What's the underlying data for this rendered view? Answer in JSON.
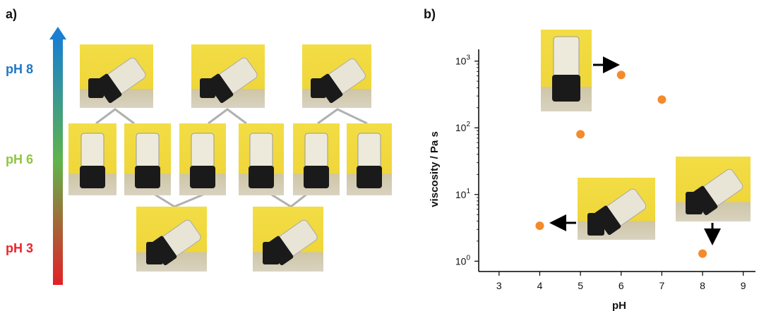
{
  "panel_a": {
    "label": "a)",
    "ph_levels": [
      {
        "text": "pH 8",
        "color": "#1f77c4"
      },
      {
        "text": "pH 6",
        "color": "#8dc63f"
      },
      {
        "text": "pH 3",
        "color": "#e8262b"
      }
    ],
    "gradient_colors": [
      "#1a7fd0",
      "#5fb44a",
      "#e41f25"
    ]
  },
  "panel_b": {
    "label": "b)"
  },
  "chart_data": {
    "type": "scatter",
    "title": "",
    "xlabel": "pH",
    "ylabel": "viscosity / Pa s",
    "xlim": [
      2.5,
      9.3
    ],
    "ylim": [
      0.7,
      1500
    ],
    "yscale": "log",
    "x_ticks": [
      "3",
      "4",
      "5",
      "6",
      "7",
      "8",
      "9"
    ],
    "y_ticks": [
      {
        "base": "10",
        "exp": "0"
      },
      {
        "base": "10",
        "exp": "1"
      },
      {
        "base": "10",
        "exp": "2"
      },
      {
        "base": "10",
        "exp": "3"
      }
    ],
    "marker_color": "#f58a2b",
    "grid": false,
    "points": [
      {
        "x": 4,
        "y": 3.4
      },
      {
        "x": 5,
        "y": 80
      },
      {
        "x": 6,
        "y": 620
      },
      {
        "x": 7,
        "y": 265
      },
      {
        "x": 8,
        "y": 1.3
      }
    ]
  }
}
